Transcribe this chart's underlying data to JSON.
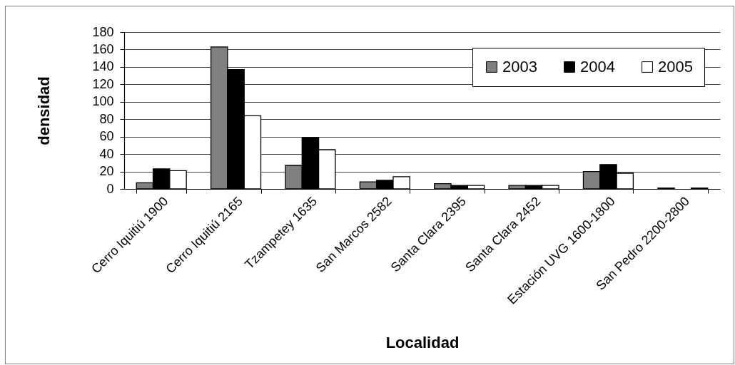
{
  "chart_data": {
    "type": "bar",
    "xlabel": "Localidad",
    "ylabel": "densidad",
    "categories": [
      "Cerro Iquitiú 1900",
      "Cerro Iquitiú 2165",
      "Tzampetey 1635",
      "San Marcos 2582",
      "Santa Clara 2395",
      "Santa Clara 2452",
      "Estación UVG 1600-1800",
      "San Pedro 2200-2800"
    ],
    "series": [
      {
        "name": "2003",
        "color": "#808080",
        "values": [
          7,
          163,
          27,
          8,
          6,
          4,
          20,
          1
        ]
      },
      {
        "name": "2004",
        "color": "#000000",
        "values": [
          23,
          137,
          59,
          10,
          4,
          4,
          28,
          null
        ]
      },
      {
        "name": "2005",
        "color": "#ffffff",
        "values": [
          21,
          84,
          45,
          14,
          4,
          4,
          18,
          1
        ]
      }
    ],
    "ylim": [
      0,
      180
    ],
    "yticks": [
      0,
      20,
      40,
      60,
      80,
      100,
      120,
      140,
      160,
      180
    ],
    "grid": "y",
    "legend": "top right"
  }
}
